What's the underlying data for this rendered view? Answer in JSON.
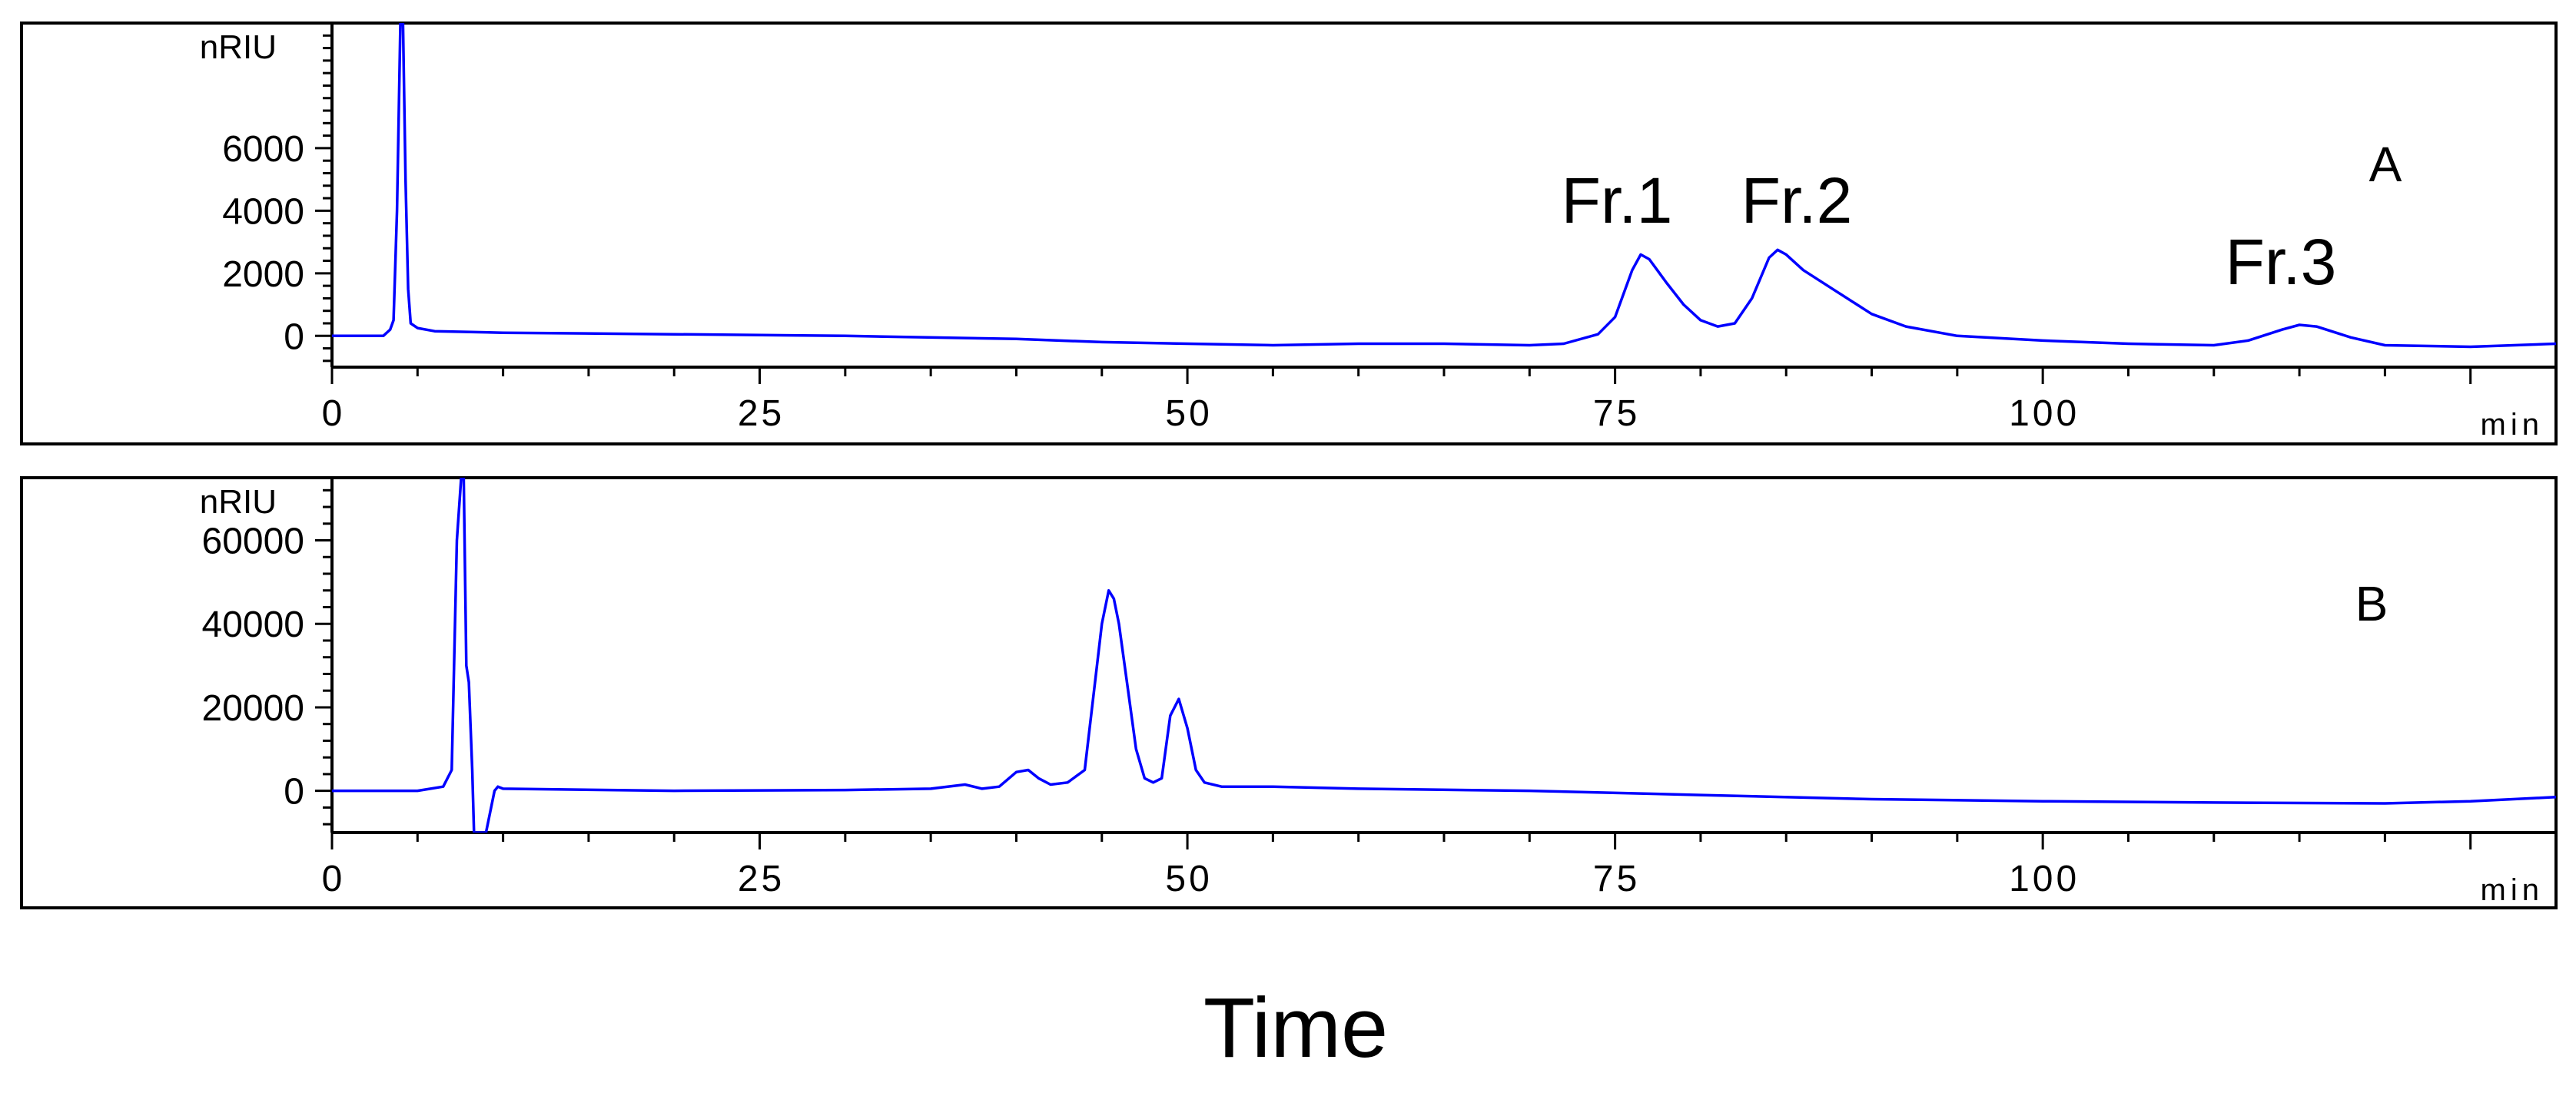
{
  "figure": {
    "xlabel": "Time"
  },
  "chart_data": [
    {
      "type": "line",
      "panel_label": "A",
      "ylabel": "nRIU",
      "x_unit": "min",
      "xlim": [
        0,
        130
      ],
      "ylim": [
        -1000,
        10000
      ],
      "x_ticks": [
        0,
        25,
        50,
        75,
        100
      ],
      "y_ticks": [
        0,
        2000,
        4000,
        6000
      ],
      "grid": false,
      "annotations": [
        {
          "text": "Fr.1",
          "x": 76.5,
          "y": 3000
        },
        {
          "text": "Fr.2",
          "x": 86.5,
          "y": 3000
        },
        {
          "text": "Fr.3",
          "x": 115,
          "y": 1200
        }
      ],
      "series": [
        {
          "color": "#0000ff",
          "x": [
            0,
            3.0,
            3.4,
            3.6,
            3.8,
            4.0,
            4.15,
            4.3,
            4.45,
            4.6,
            5.0,
            6,
            10,
            20,
            30,
            40,
            45,
            50,
            55,
            60,
            65,
            70,
            72,
            74,
            75,
            76,
            76.5,
            77,
            78,
            79,
            80,
            81,
            82,
            83,
            84,
            84.5,
            85,
            86,
            88,
            90,
            92,
            95,
            100,
            105,
            110,
            112,
            114,
            115,
            116,
            118,
            120,
            125,
            130
          ],
          "y": [
            0,
            0,
            200,
            500,
            4000,
            10000,
            10000,
            5000,
            1500,
            400,
            250,
            150,
            100,
            50,
            0,
            -100,
            -200,
            -250,
            -300,
            -250,
            -250,
            -300,
            -250,
            50,
            600,
            2100,
            2600,
            2450,
            1700,
            1000,
            500,
            300,
            400,
            1200,
            2500,
            2750,
            2600,
            2100,
            1400,
            700,
            300,
            0,
            -150,
            -250,
            -300,
            -150,
            200,
            350,
            300,
            -50,
            -300,
            -350,
            -250
          ]
        }
      ]
    },
    {
      "type": "line",
      "panel_label": "B",
      "ylabel": "nRIU",
      "x_unit": "min",
      "xlim": [
        0,
        130
      ],
      "ylim": [
        -10000,
        75000
      ],
      "x_ticks": [
        0,
        25,
        50,
        75,
        100
      ],
      "y_ticks": [
        0,
        20000,
        40000,
        60000
      ],
      "grid": false,
      "series": [
        {
          "color": "#0000ff",
          "x": [
            0,
            5,
            6.5,
            7.0,
            7.3,
            7.55,
            7.7,
            7.85,
            8.0,
            8.2,
            8.3,
            8.5,
            9.0,
            9.5,
            9.7,
            10,
            20,
            30,
            35,
            37,
            38,
            39,
            40,
            40.7,
            41.3,
            42,
            43,
            44,
            45,
            45.4,
            45.7,
            46,
            46.5,
            47,
            47.5,
            48,
            48.5,
            49,
            49.5,
            50,
            50.5,
            51,
            52,
            55,
            60,
            70,
            80,
            90,
            100,
            110,
            120,
            125,
            130
          ],
          "y": [
            0,
            0,
            1000,
            5000,
            60000,
            75000,
            75000,
            30000,
            26000,
            5000,
            -10000,
            -10000,
            -10000,
            0,
            1000,
            500,
            0,
            200,
            500,
            1500,
            500,
            1000,
            4500,
            5000,
            3000,
            1500,
            2000,
            5000,
            40000,
            48000,
            46000,
            40000,
            25000,
            10000,
            3000,
            2000,
            3000,
            18000,
            22000,
            15000,
            5000,
            2000,
            1000,
            1000,
            500,
            0,
            -1000,
            -2000,
            -2500,
            -2800,
            -3000,
            -2500,
            -1500
          ]
        }
      ]
    }
  ]
}
